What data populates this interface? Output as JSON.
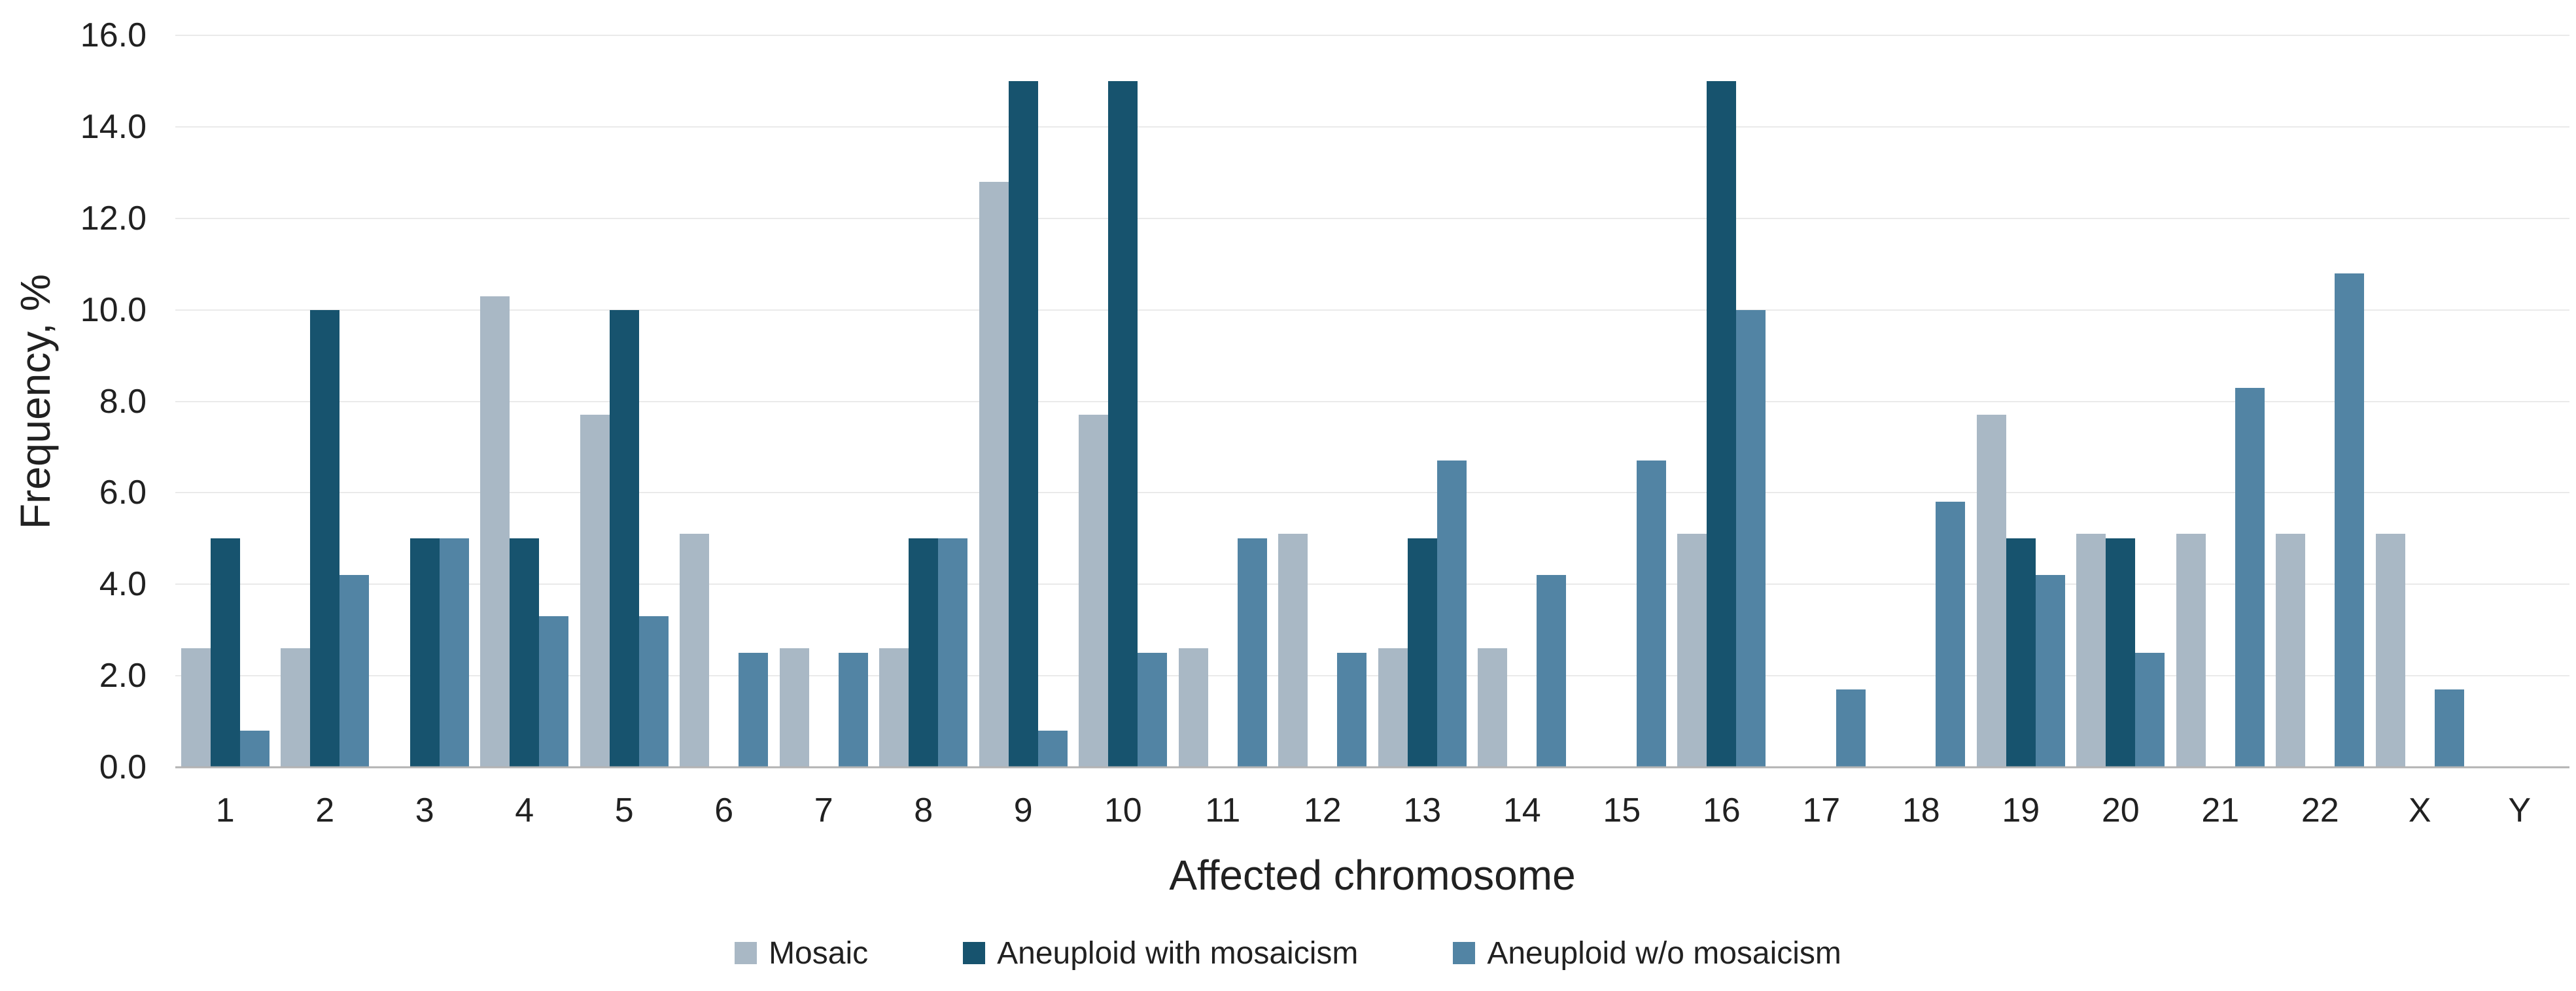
{
  "chart_data": {
    "type": "bar",
    "title": "",
    "xlabel": "Affected chromosome",
    "ylabel": "Frequency, %",
    "ylim": [
      0,
      16
    ],
    "ytick_step": 2,
    "y_ticks": [
      "0.0",
      "2.0",
      "4.0",
      "6.0",
      "8.0",
      "10.0",
      "12.0",
      "14.0",
      "16.0"
    ],
    "grid": true,
    "legend_position": "bottom",
    "categories": [
      "1",
      "2",
      "3",
      "4",
      "5",
      "6",
      "7",
      "8",
      "9",
      "10",
      "11",
      "12",
      "13",
      "14",
      "15",
      "16",
      "17",
      "18",
      "19",
      "20",
      "21",
      "22",
      "X",
      "Y"
    ],
    "series": [
      {
        "name": "Mosaic",
        "color": "#a9b8c5",
        "values": [
          2.6,
          2.6,
          0,
          10.3,
          7.7,
          5.1,
          2.6,
          2.6,
          12.8,
          7.7,
          2.6,
          5.1,
          2.6,
          2.6,
          0,
          5.1,
          0,
          0,
          7.7,
          5.1,
          5.1,
          5.1,
          5.1,
          0
        ]
      },
      {
        "name": "Aneuploid with mosaicism",
        "color": "#17536e",
        "values": [
          5,
          10,
          5,
          5,
          10,
          0,
          0,
          5,
          15,
          15,
          0,
          0,
          5,
          0,
          0,
          15,
          0,
          0,
          5,
          5,
          0,
          0,
          0,
          0
        ]
      },
      {
        "name": "Aneuploid w/o mosaicism",
        "color": "#5284a4",
        "values": [
          0.8,
          4.2,
          5.0,
          3.3,
          3.3,
          2.5,
          2.5,
          5.0,
          0.8,
          2.5,
          5.0,
          2.5,
          6.7,
          4.2,
          6.7,
          10.0,
          1.7,
          5.8,
          4.2,
          2.5,
          8.3,
          10.8,
          1.7,
          0
        ]
      }
    ]
  },
  "style": {
    "background": "#ffffff",
    "gridline_color": "#eaeaea",
    "axis_line_color": "#b3b3b3",
    "text_color": "#212121"
  }
}
